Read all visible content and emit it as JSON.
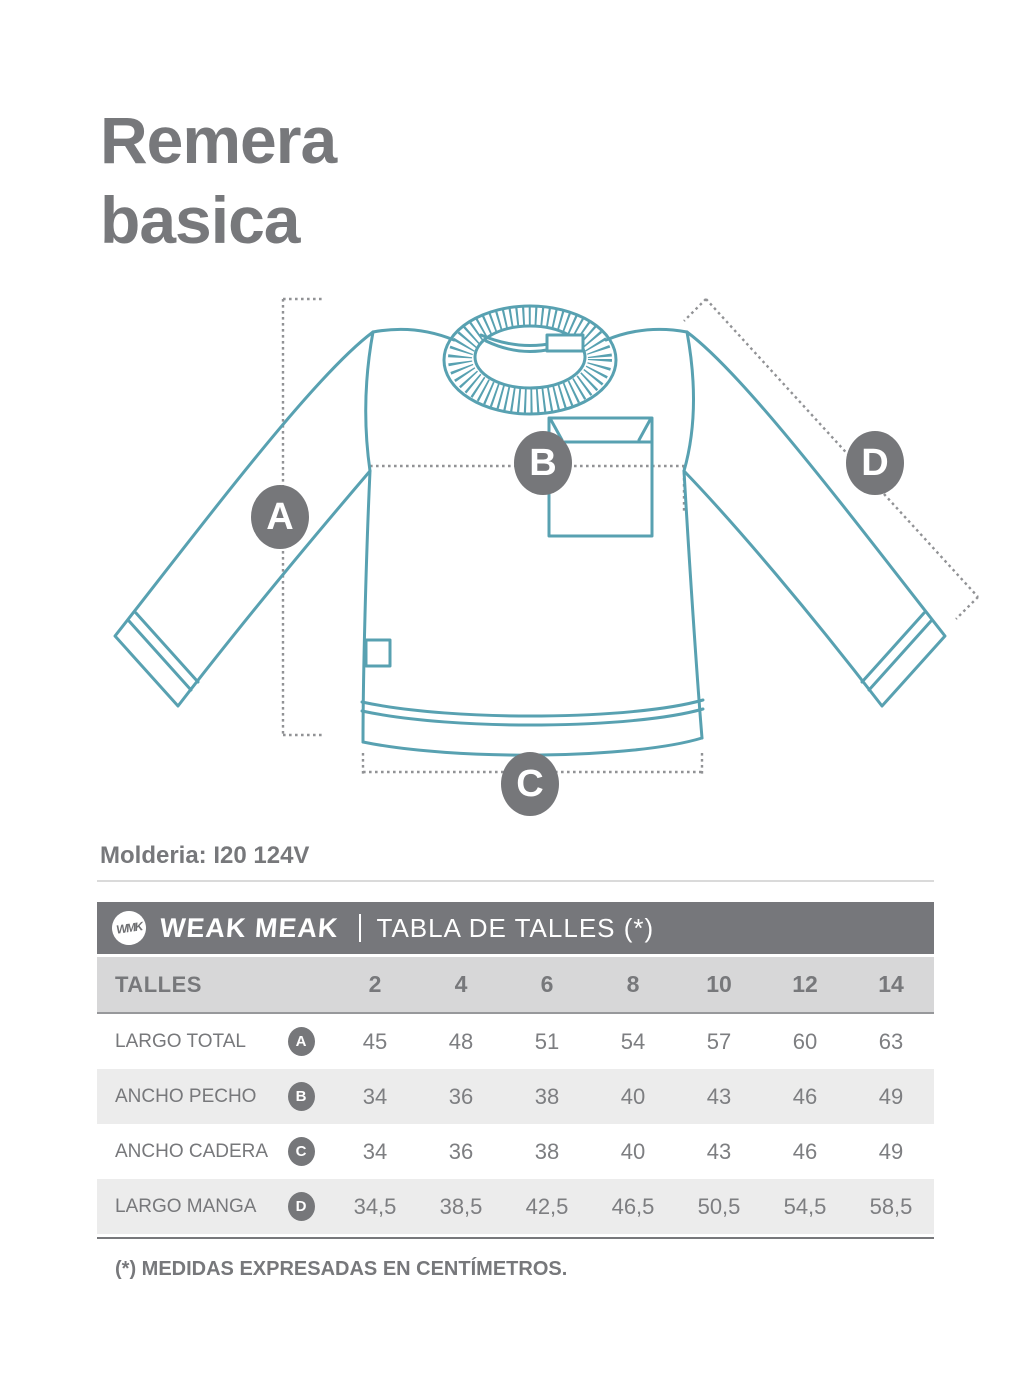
{
  "title": {
    "line1": "Remera",
    "line2": "basica"
  },
  "molderia": "Molderia: I20 124V",
  "brand": {
    "monogram": "WMK",
    "name": "WEAK MEAK",
    "section_title": "TABLA DE TALLES (*)"
  },
  "diagram": {
    "markers": [
      {
        "letter": "A"
      },
      {
        "letter": "B"
      },
      {
        "letter": "C"
      },
      {
        "letter": "D"
      }
    ]
  },
  "size_table": {
    "header_label": "TALLES",
    "sizes": [
      "2",
      "4",
      "6",
      "8",
      "10",
      "12",
      "14"
    ],
    "rows": [
      {
        "label": "LARGO TOTAL",
        "letter": "A",
        "values": [
          "45",
          "48",
          "51",
          "54",
          "57",
          "60",
          "63"
        ]
      },
      {
        "label": "ANCHO PECHO",
        "letter": "B",
        "values": [
          "34",
          "36",
          "38",
          "40",
          "43",
          "46",
          "49"
        ]
      },
      {
        "label": "ANCHO CADERA",
        "letter": "C",
        "values": [
          "34",
          "36",
          "38",
          "40",
          "43",
          "46",
          "49"
        ]
      },
      {
        "label": "LARGO MANGA",
        "letter": "D",
        "values": [
          "34,5",
          "38,5",
          "42,5",
          "46,5",
          "50,5",
          "54,5",
          "58,5"
        ]
      }
    ]
  },
  "footnote": "(*) MEDIDAS EXPRESADAS EN CENTÍMETROS.",
  "colors": {
    "garment_line_teal": "#58a1b1",
    "text_gray": "#77787b",
    "band_gray": "#76777b",
    "header_row_bg": "#d7d7d8",
    "row_stripe_bg": "#ececec",
    "dotted_line_gray": "#919295"
  }
}
